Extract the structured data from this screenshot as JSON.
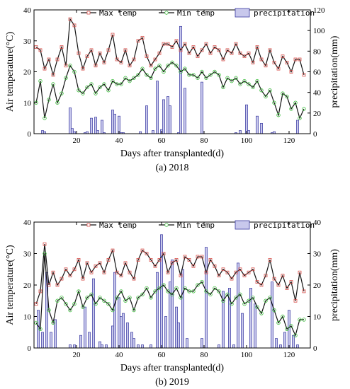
{
  "chart_data": [
    {
      "type": "line",
      "caption": "(a)  2018",
      "xlabel": "Days after transplanted(d)",
      "ylabel": "Air temperature(°C)",
      "y2label": "precipitation(mm)",
      "xlim": [
        0,
        130
      ],
      "ylim": [
        0,
        40
      ],
      "y2lim": [
        0,
        120
      ],
      "xticks": [
        "20",
        "40",
        "60",
        "80",
        "100",
        "120"
      ],
      "yticks": [
        "0",
        "10",
        "20",
        "30",
        "40"
      ],
      "y2ticks": [
        "0",
        "20",
        "40",
        "60",
        "80",
        "100",
        "120"
      ],
      "legend": [
        "Max temp",
        "Min temp",
        "precipitation"
      ],
      "series": [
        {
          "name": "Max temp",
          "color": "#d9534f",
          "x": [
            1,
            3,
            5,
            7,
            9,
            11,
            13,
            15,
            17,
            19,
            21,
            23,
            25,
            27,
            29,
            31,
            33,
            35,
            37,
            39,
            41,
            43,
            45,
            47,
            49,
            51,
            53,
            55,
            57,
            59,
            61,
            63,
            65,
            67,
            69,
            71,
            73,
            75,
            77,
            79,
            81,
            83,
            85,
            87,
            89,
            91,
            93,
            95,
            97,
            99,
            101,
            103,
            105,
            107,
            109,
            111,
            113,
            115,
            117,
            119,
            121,
            123,
            125,
            127
          ],
          "values": [
            28,
            27,
            21,
            24,
            19,
            24,
            28,
            22,
            37,
            35,
            26,
            21,
            25,
            27,
            22,
            26,
            23,
            27,
            32,
            24,
            23,
            27,
            22,
            24,
            30,
            31,
            25,
            22,
            24,
            26,
            29,
            29,
            28,
            30,
            27,
            29,
            26,
            28,
            25,
            27,
            29,
            26,
            28,
            27,
            24,
            27,
            26,
            29,
            26,
            25,
            26,
            23,
            28,
            24,
            22,
            27,
            23,
            21,
            25,
            23,
            20,
            24,
            24,
            19
          ]
        },
        {
          "name": "Min temp",
          "color": "#3fbf3f",
          "x": [
            1,
            3,
            5,
            7,
            9,
            11,
            13,
            15,
            17,
            19,
            21,
            23,
            25,
            27,
            29,
            31,
            33,
            35,
            37,
            39,
            41,
            43,
            45,
            47,
            49,
            51,
            53,
            55,
            57,
            59,
            61,
            63,
            65,
            67,
            69,
            71,
            73,
            75,
            77,
            79,
            81,
            83,
            85,
            87,
            89,
            91,
            93,
            95,
            97,
            99,
            101,
            103,
            105,
            107,
            109,
            111,
            113,
            115,
            117,
            119,
            121,
            123,
            125,
            127
          ],
          "values": [
            10,
            17,
            5,
            11,
            16,
            10,
            13,
            18,
            22,
            20,
            14,
            13,
            15,
            16,
            13,
            15,
            16,
            14,
            17,
            16,
            16,
            18,
            17,
            18,
            19,
            21,
            19,
            18,
            21,
            22,
            20,
            22,
            23,
            22,
            20,
            21,
            19,
            19,
            18,
            20,
            18,
            19,
            20,
            19,
            15,
            18,
            17,
            18,
            16,
            17,
            16,
            15,
            17,
            14,
            12,
            14,
            10,
            6,
            13,
            12,
            8,
            10,
            5,
            8
          ]
        },
        {
          "name": "precipitation",
          "type": "bar",
          "color": "#9a9ad0",
          "x": [
            4,
            5,
            17,
            18,
            19,
            24,
            25,
            27,
            29,
            30,
            32,
            33,
            37,
            38,
            40,
            41,
            42,
            50,
            53,
            56,
            58,
            60,
            61,
            63,
            64,
            68,
            69,
            71,
            79,
            95,
            97,
            100,
            101,
            105,
            107,
            112,
            113,
            124
          ],
          "values": [
            3,
            2,
            25,
            5,
            2,
            1,
            2,
            15,
            16,
            3,
            13,
            1,
            23,
            19,
            17,
            1,
            1,
            2,
            27,
            3,
            51,
            4,
            33,
            36,
            27,
            1,
            104,
            44,
            50,
            1,
            3,
            28,
            3,
            17,
            10,
            1,
            2,
            13
          ]
        }
      ]
    },
    {
      "type": "line",
      "caption": "(b)  2019",
      "xlabel": "Days after transplanted(d)",
      "ylabel": "Air temperature(°C)",
      "y2label": "precipitation(mm)",
      "xlim": [
        0,
        130
      ],
      "ylim": [
        0,
        40
      ],
      "y2lim": [
        0,
        40
      ],
      "xticks": [
        "20",
        "40",
        "60",
        "80",
        "100",
        "120"
      ],
      "yticks": [
        "0",
        "10",
        "20",
        "30",
        "40"
      ],
      "y2ticks": [
        "0",
        "10",
        "20",
        "30",
        "40"
      ],
      "legend": [
        "Max temp",
        "Min temp",
        "precipitation"
      ],
      "series": [
        {
          "name": "Max temp",
          "color": "#d9534f",
          "x": [
            1,
            3,
            5,
            7,
            9,
            11,
            13,
            15,
            17,
            19,
            21,
            23,
            25,
            27,
            29,
            31,
            33,
            35,
            37,
            39,
            41,
            43,
            45,
            47,
            49,
            51,
            53,
            55,
            57,
            59,
            61,
            63,
            65,
            67,
            69,
            71,
            73,
            75,
            77,
            79,
            81,
            83,
            85,
            87,
            89,
            91,
            93,
            95,
            97,
            99,
            101,
            103,
            105,
            107,
            109,
            111,
            113,
            115,
            117,
            119,
            121,
            123,
            125,
            127
          ],
          "values": [
            14,
            18,
            33,
            20,
            24,
            20,
            22,
            25,
            23,
            25,
            28,
            22,
            27,
            24,
            26,
            27,
            24,
            28,
            31,
            24,
            23,
            27,
            24,
            22,
            28,
            31,
            30,
            28,
            26,
            28,
            30,
            24,
            27,
            28,
            23,
            29,
            28,
            26,
            29,
            29,
            24,
            28,
            26,
            23,
            25,
            24,
            22,
            24,
            25,
            23,
            24,
            25,
            21,
            20,
            23,
            28,
            22,
            20,
            23,
            19,
            21,
            15,
            24,
            18
          ]
        },
        {
          "name": "Min temp",
          "color": "#3fbf3f",
          "x": [
            1,
            3,
            5,
            7,
            9,
            11,
            13,
            15,
            17,
            19,
            21,
            23,
            25,
            27,
            29,
            31,
            33,
            35,
            37,
            39,
            41,
            43,
            45,
            47,
            49,
            51,
            53,
            55,
            57,
            59,
            61,
            63,
            65,
            67,
            69,
            71,
            73,
            75,
            77,
            79,
            81,
            83,
            85,
            87,
            89,
            91,
            93,
            95,
            97,
            99,
            101,
            103,
            105,
            107,
            109,
            111,
            113,
            115,
            117,
            119,
            121,
            123,
            125,
            127
          ],
          "values": [
            8,
            6,
            30,
            12,
            8,
            15,
            16,
            14,
            12,
            14,
            18,
            13,
            16,
            17,
            14,
            16,
            15,
            14,
            12,
            16,
            18,
            15,
            16,
            12,
            16,
            17,
            19,
            16,
            18,
            19,
            20,
            18,
            17,
            19,
            16,
            19,
            18,
            18,
            20,
            21,
            18,
            17,
            19,
            18,
            15,
            17,
            14,
            16,
            17,
            14,
            15,
            16,
            13,
            11,
            15,
            16,
            12,
            8,
            10,
            6,
            7,
            4,
            9,
            9
          ]
        },
        {
          "name": "precipitation",
          "type": "bar",
          "color": "#9a9ad0",
          "x": [
            2,
            4,
            6,
            8,
            10,
            17,
            19,
            22,
            24,
            26,
            28,
            31,
            32,
            34,
            37,
            38,
            40,
            41,
            42,
            44,
            46,
            47,
            49,
            51,
            55,
            58,
            60,
            62,
            64,
            65,
            67,
            68,
            70,
            72,
            79,
            81,
            87,
            89,
            92,
            94,
            96,
            98,
            102,
            104,
            112,
            114,
            116,
            118,
            120,
            122,
            124
          ],
          "values": [
            12,
            5,
            24,
            5,
            9,
            1,
            1,
            4,
            13,
            5,
            22,
            2,
            1,
            1,
            7,
            24,
            16,
            10,
            11,
            8,
            5,
            3,
            1,
            1,
            1,
            24,
            36,
            10,
            21,
            28,
            13,
            8,
            25,
            3,
            3,
            32,
            1,
            18,
            19,
            1,
            27,
            11,
            19,
            14,
            21,
            3,
            1,
            5,
            12,
            4,
            1
          ]
        }
      ]
    }
  ]
}
